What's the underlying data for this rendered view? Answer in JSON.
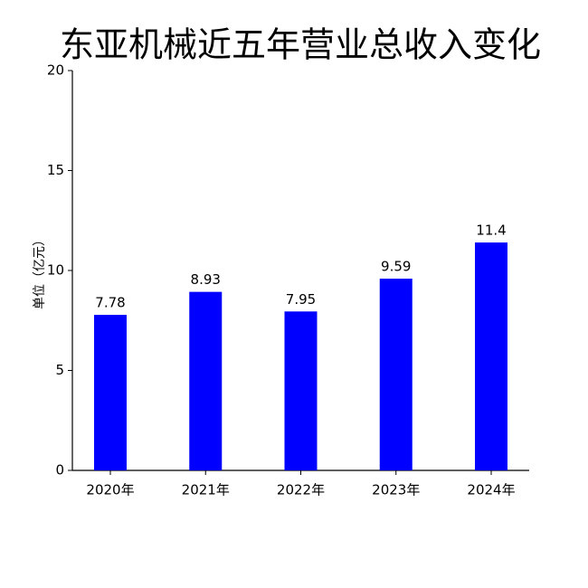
{
  "chart_data": {
    "type": "bar",
    "title": "东亚机械近五年营业总收入变化",
    "y_label": "单位（亿元）",
    "categories": [
      "2020年",
      "2021年",
      "2022年",
      "2023年",
      "2024年"
    ],
    "values": [
      7.78,
      8.93,
      7.95,
      9.59,
      11.4
    ],
    "color": "#0000ff",
    "ylim": [
      0,
      20
    ],
    "yticks": [
      0,
      5,
      10,
      15,
      20
    ],
    "grid": false
  }
}
